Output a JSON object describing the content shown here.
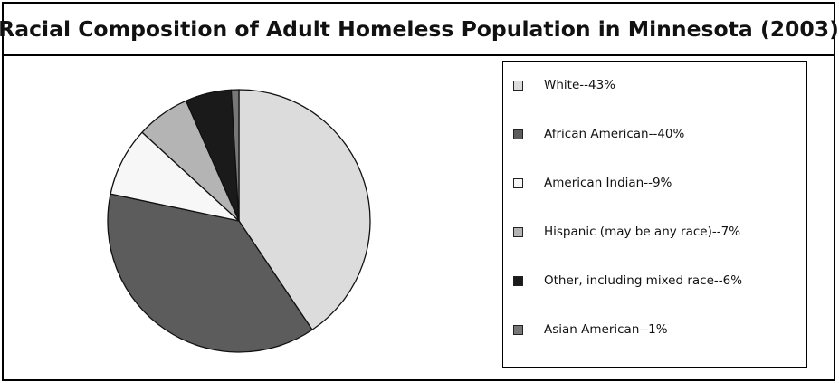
{
  "chart_data": {
    "type": "pie",
    "title": "Racial Composition of Adult Homeless Population in Minnesota (2003)",
    "slices": [
      {
        "label": "White--43%",
        "value": 43,
        "color": "#dcdcdc"
      },
      {
        "label": "African American--40%",
        "value": 40,
        "color": "#5c5c5c"
      },
      {
        "label": "American Indian--9%",
        "value": 9,
        "color": "#f7f7f7"
      },
      {
        "label": "Hispanic (may be any race)--7%",
        "value": 7,
        "color": "#b4b4b4"
      },
      {
        "label": "Other, including mixed race--6%",
        "value": 6,
        "color": "#1a1a1a"
      },
      {
        "label": "Asian American--1%",
        "value": 1,
        "color": "#777777"
      }
    ],
    "legend_position": "right",
    "start_angle": "12 o'clock",
    "direction": "clockwise"
  }
}
